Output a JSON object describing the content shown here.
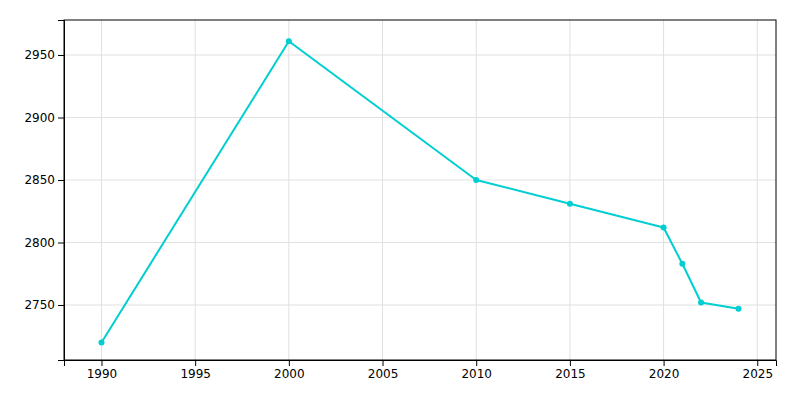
{
  "chart_data": {
    "type": "line",
    "x": [
      1990,
      2000,
      2010,
      2015,
      2020,
      2021,
      2022,
      2024
    ],
    "values": [
      2720,
      2961,
      2850,
      2831,
      2812,
      2783,
      2752,
      2747
    ],
    "color": "#00CED1",
    "marker": "circle",
    "xlim": [
      1988,
      2026
    ],
    "ylim": [
      2706,
      2978
    ],
    "xticks": [
      1990,
      1995,
      2000,
      2005,
      2010,
      2015,
      2020,
      2025
    ],
    "yticks": [
      2750,
      2800,
      2850,
      2900,
      2950
    ],
    "grid": true
  }
}
